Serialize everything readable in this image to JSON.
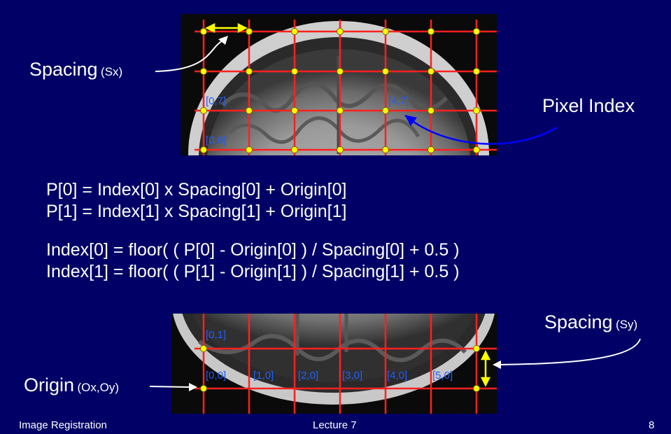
{
  "slide": {
    "background": "#000066",
    "page_number": "8",
    "footer_left": "Image Registration",
    "footer_center": "Lecture 7"
  },
  "top_figure": {
    "spacing_label": "Spacing",
    "spacing_sub": "(Sx)",
    "pixel_index_label": "Pixel Index",
    "index_labels": [
      "[0,7]",
      "[4,7]",
      "[0,6]"
    ]
  },
  "equations": {
    "p0": "P[0] = Index[0] x Spacing[0] + Origin[0]",
    "p1": "P[1] = Index[1] x Spacing[1] + Origin[1]",
    "i0": "Index[0] = floor( ( P[0] - Origin[0] ) / Spacing[0] + 0.5 )",
    "i1": "Index[1] = floor( ( P[1] - Origin[1] ) / Spacing[1] + 0.5 )"
  },
  "bottom_figure": {
    "spacing_label": "Spacing",
    "spacing_sub": "(Sy)",
    "origin_label": "Origin",
    "origin_sub": "(Ox,Oy)",
    "index_labels": [
      "[0,1]",
      "[0,0]",
      "[1,0]",
      "[2,0]",
      "[3,0]",
      "[4,0]",
      "[5,0]"
    ]
  },
  "colors": {
    "grid": "#ff2020",
    "node": "#ffff00",
    "index_text": "#1f5fff",
    "arrow_blue": "#0000ff",
    "arrow_yellow": "#ffff00"
  }
}
